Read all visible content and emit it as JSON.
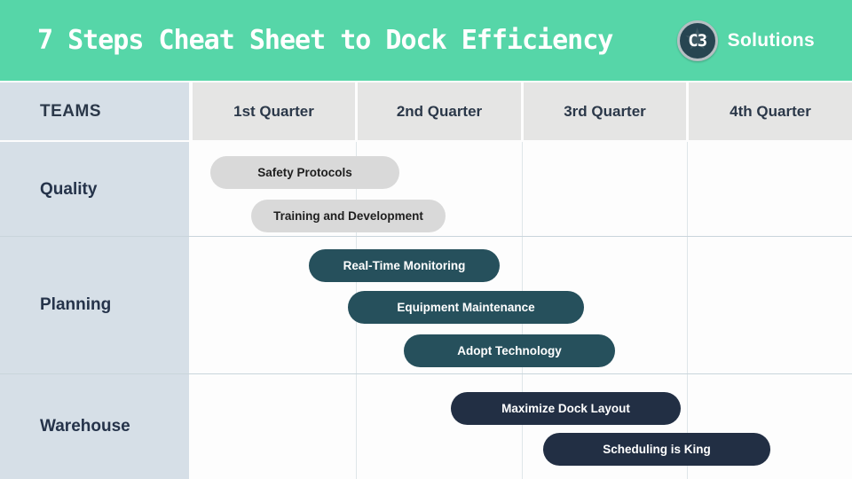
{
  "banner": {
    "title": "7 Steps Cheat Sheet to Dock Efficiency",
    "logo_monogram": "C3",
    "logo_brand": "Solutions"
  },
  "table": {
    "teams_header": "TEAMS",
    "quarters": [
      {
        "label": "1st Quarter"
      },
      {
        "label": "2nd Quarter"
      },
      {
        "label": "3rd Quarter"
      },
      {
        "label": "4th Quarter"
      }
    ],
    "teams": [
      {
        "label": "Quality"
      },
      {
        "label": "Planning"
      },
      {
        "label": "Warehouse"
      }
    ]
  },
  "bars": [
    {
      "label": "Safety Protocols",
      "team": "Quality",
      "color": "#d9d9d9",
      "text_color": "#1e1e1e"
    },
    {
      "label": "Training and Development",
      "team": "Quality",
      "color": "#d9d9d9",
      "text_color": "#1e1e1e"
    },
    {
      "label": "Real-Time Monitoring",
      "team": "Planning",
      "color": "#26505c",
      "text_color": "#ffffff"
    },
    {
      "label": "Equipment Maintenance",
      "team": "Planning",
      "color": "#26505c",
      "text_color": "#ffffff"
    },
    {
      "label": "Adopt Technology",
      "team": "Planning",
      "color": "#26505c",
      "text_color": "#ffffff"
    },
    {
      "label": "Maximize Dock Layout",
      "team": "Warehouse",
      "color": "#222f44",
      "text_color": "#ffffff"
    },
    {
      "label": "Scheduling is King",
      "team": "Warehouse",
      "color": "#222f44",
      "text_color": "#ffffff"
    }
  ],
  "colors": {
    "banner_background": "#56d6a8",
    "teams_column_background": "#d6dfe7",
    "quarter_header_background": "#e5e5e4",
    "body_background": "#fdfdfd",
    "grid_line": "#dfe6e9",
    "row_divider": "#c9d5db",
    "header_text": "#2b3849",
    "logo_badge": "#274551",
    "logo_ring": "#b6bfc3"
  },
  "chart_data": {
    "type": "bar",
    "subtype": "gantt",
    "title": "7 Steps Cheat Sheet to Dock Efficiency",
    "x_categories": [
      "1st Quarter",
      "2nd Quarter",
      "3rd Quarter",
      "4th Quarter"
    ],
    "row_groups": [
      "Quality",
      "Planning",
      "Warehouse"
    ],
    "legend": false,
    "grid": true,
    "tasks": [
      {
        "team": "Quality",
        "label": "Safety Protocols",
        "start_quarter": 1.1,
        "end_quarter": 2.25
      },
      {
        "team": "Quality",
        "label": "Training and Development",
        "start_quarter": 1.35,
        "end_quarter": 2.55
      },
      {
        "team": "Planning",
        "label": "Real-Time Monitoring",
        "start_quarter": 1.7,
        "end_quarter": 2.85
      },
      {
        "team": "Planning",
        "label": "Equipment Maintenance",
        "start_quarter": 1.95,
        "end_quarter": 3.35
      },
      {
        "team": "Planning",
        "label": "Adopt Technology",
        "start_quarter": 2.3,
        "end_quarter": 3.55
      },
      {
        "team": "Warehouse",
        "label": "Maximize Dock Layout",
        "start_quarter": 2.6,
        "end_quarter": 3.95
      },
      {
        "team": "Warehouse",
        "label": "Scheduling is King",
        "start_quarter": 3.1,
        "end_quarter": 4.5
      }
    ]
  }
}
